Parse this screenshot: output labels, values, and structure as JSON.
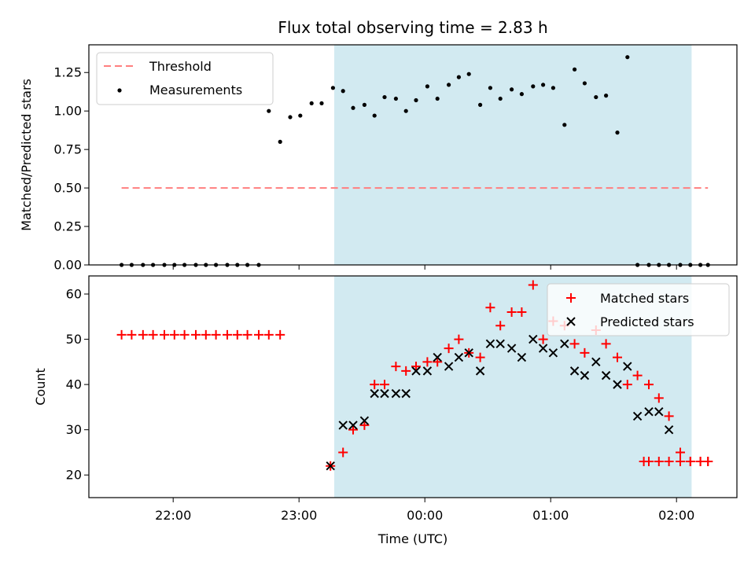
{
  "chart_data": [
    {
      "type": "scatter",
      "title": "Flux total observing time = 2.83 h",
      "xlabel": "",
      "ylabel": "Matched/Predicted stars",
      "x_unit": "hours (UTC, 00:00 = 24)",
      "xlim": [
        21.33,
        26.48
      ],
      "ylim": [
        0.0,
        1.43
      ],
      "yticks": [
        "0.00",
        "0.25",
        "0.50",
        "0.75",
        "1.00",
        "1.25"
      ],
      "legend": {
        "placement": "top-left",
        "entries": [
          "Threshold",
          "Measurements"
        ]
      },
      "shaded_span": {
        "x": [
          23.28,
          26.12
        ],
        "color": "#add8e6"
      },
      "threshold": {
        "name": "Threshold",
        "value": 0.5,
        "x": [
          21.59,
          26.25
        ],
        "color": "#ff7f7f"
      },
      "series": [
        {
          "name": "Measurements",
          "color": "#000000",
          "x": [
            21.59,
            21.67,
            21.76,
            21.84,
            21.93,
            22.01,
            22.09,
            22.18,
            22.26,
            22.34,
            22.43,
            22.51,
            22.59,
            22.68,
            22.76,
            22.85,
            22.93,
            23.01,
            23.1,
            23.18,
            23.27,
            23.35,
            23.43,
            23.52,
            23.6,
            23.68,
            23.77,
            23.85,
            23.93,
            24.02,
            24.1,
            24.19,
            24.27,
            24.35,
            24.44,
            24.52,
            24.6,
            24.69,
            24.77,
            24.86,
            24.94,
            25.02,
            25.11,
            25.19,
            25.27,
            25.36,
            25.44,
            25.53,
            25.61,
            25.69,
            25.78,
            25.86,
            25.94,
            26.03,
            26.11,
            26.19,
            26.25
          ],
          "y": [
            0.0,
            0.0,
            0.0,
            0.0,
            0.0,
            0.0,
            0.0,
            0.0,
            0.0,
            0.0,
            0.0,
            0.0,
            0.0,
            0.0,
            1.0,
            0.8,
            0.96,
            0.97,
            1.05,
            1.05,
            1.15,
            1.13,
            1.02,
            1.04,
            0.97,
            1.09,
            1.08,
            1.0,
            1.07,
            1.16,
            1.08,
            1.17,
            1.22,
            1.24,
            1.04,
            1.15,
            1.08,
            1.14,
            1.11,
            1.16,
            1.17,
            1.15,
            0.91,
            1.27,
            1.18,
            1.09,
            1.1,
            0.86,
            1.35,
            0.0,
            0.0,
            0.0,
            0.0,
            0.0,
            0.0,
            0.0,
            0.0
          ]
        }
      ]
    },
    {
      "type": "scatter",
      "title": "",
      "xlabel": "Time (UTC)",
      "ylabel": "Count",
      "x_unit": "hours (UTC, 00:00 = 24)",
      "xlim": [
        21.33,
        26.48
      ],
      "ylim": [
        15.0,
        64.0
      ],
      "yticks": [
        "20",
        "30",
        "40",
        "50",
        "60"
      ],
      "xtick_values": [
        22,
        23,
        24,
        25,
        26
      ],
      "xticks": [
        "22:00",
        "23:00",
        "00:00",
        "01:00",
        "02:00"
      ],
      "legend": {
        "placement": "top-right",
        "entries": [
          "Matched stars",
          "Predicted stars"
        ]
      },
      "shaded_span": {
        "x": [
          23.28,
          26.12
        ],
        "color": "#add8e6"
      },
      "series": [
        {
          "name": "Matched stars",
          "marker": "+",
          "color": "#ff0000",
          "x": [
            21.59,
            21.67,
            21.76,
            21.84,
            21.93,
            22.01,
            22.09,
            22.18,
            22.26,
            22.34,
            22.43,
            22.51,
            22.59,
            22.68,
            22.76,
            22.85,
            23.25,
            23.35,
            23.43,
            23.52,
            23.6,
            23.68,
            23.77,
            23.85,
            23.93,
            24.02,
            24.1,
            24.19,
            24.27,
            24.35,
            24.44,
            24.52,
            24.6,
            24.69,
            24.77,
            24.86,
            24.94,
            25.02,
            25.11,
            25.19,
            25.27,
            25.36,
            25.44,
            25.53,
            25.61,
            25.69,
            25.78,
            25.86,
            25.94,
            26.03,
            26.11,
            26.19,
            26.25,
            25.74,
            25.78,
            25.86,
            25.94,
            26.03,
            26.11,
            26.19,
            26.25
          ],
          "y": [
            51,
            51,
            51,
            51,
            51,
            51,
            51,
            51,
            51,
            51,
            51,
            51,
            51,
            51,
            51,
            51,
            22,
            25,
            30,
            31,
            40,
            40,
            44,
            43,
            44,
            45,
            45,
            48,
            50,
            47,
            46,
            57,
            53,
            56,
            56,
            62,
            50,
            54,
            53,
            49,
            47,
            52,
            49,
            46,
            40,
            42,
            40,
            37,
            33,
            25,
            23,
            23,
            23,
            23,
            23,
            23,
            23,
            23,
            23,
            23,
            23
          ]
        },
        {
          "name": "Predicted stars",
          "marker": "x",
          "color": "#000000",
          "x": [
            23.25,
            23.35,
            23.43,
            23.52,
            23.6,
            23.68,
            23.77,
            23.85,
            23.93,
            24.02,
            24.1,
            24.19,
            24.27,
            24.35,
            24.44,
            24.52,
            24.6,
            24.69,
            24.77,
            24.86,
            24.94,
            25.02,
            25.11,
            25.19,
            25.27,
            25.36,
            25.44,
            25.53,
            25.61,
            25.69,
            25.78,
            25.86,
            25.94
          ],
          "y": [
            22,
            31,
            31,
            32,
            38,
            38,
            38,
            38,
            43,
            43,
            46,
            44,
            46,
            47,
            43,
            49,
            49,
            48,
            46,
            50,
            48,
            47,
            49,
            43,
            42,
            45,
            42,
            40,
            44,
            33,
            34,
            34,
            30
          ]
        }
      ]
    }
  ]
}
